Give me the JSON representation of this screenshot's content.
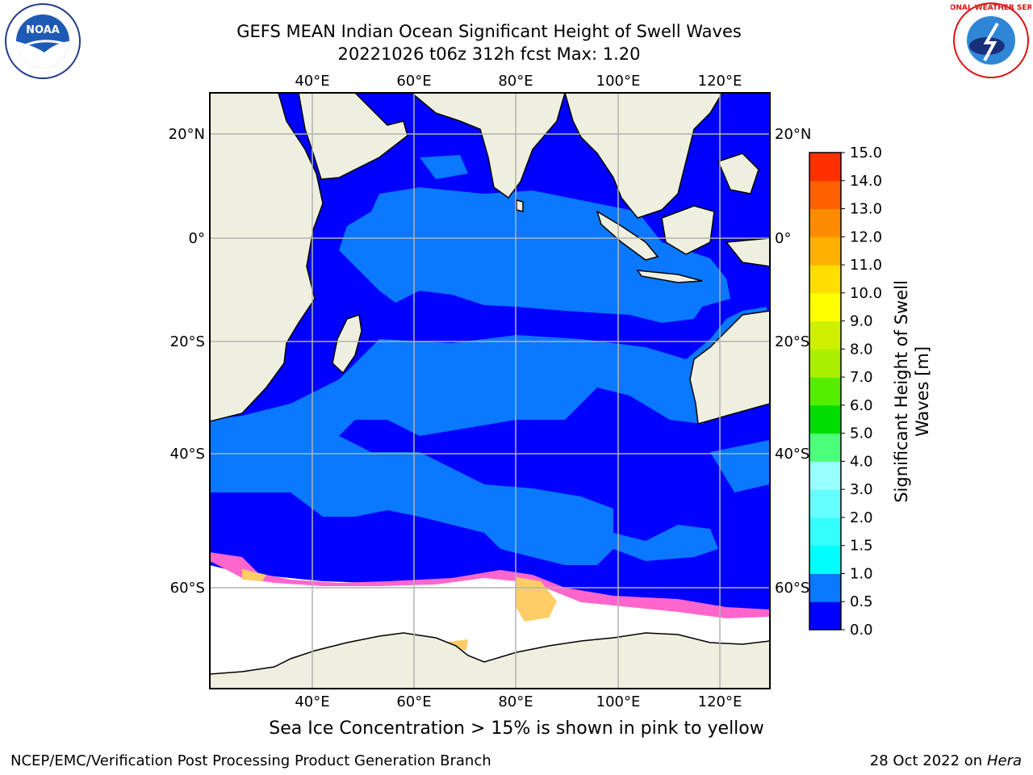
{
  "title": {
    "line1": "GEFS MEAN Indian Ocean Significant Height of Swell Waves",
    "line2": "20221026 t06z 312h fcst   Max: 1.20"
  },
  "map": {
    "lon_ticks": [
      "40°E",
      "60°E",
      "80°E",
      "100°E",
      "120°E"
    ],
    "lat_ticks": [
      "20°N",
      "0°",
      "20°S",
      "40°S",
      "60°S"
    ],
    "lon_range": [
      20,
      130
    ],
    "lat_range": [
      -74,
      28
    ]
  },
  "colorbar": {
    "label_line1": "Significant Height of Swell",
    "label_line2": "Waves [m]",
    "ticks": [
      "0.0",
      "0.5",
      "1.0",
      "1.5",
      "2.0",
      "3.0",
      "4.0",
      "5.0",
      "6.0",
      "7.0",
      "8.0",
      "9.0",
      "10.0",
      "11.0",
      "12.0",
      "13.0",
      "14.0",
      "15.0"
    ],
    "colors": [
      "#0000ff",
      "#0a78ff",
      "#00ffff",
      "#33ffff",
      "#66ffff",
      "#99ffff",
      "#4cff7a",
      "#00dd00",
      "#55ee00",
      "#aaf000",
      "#ccf000",
      "#ffff00",
      "#ffdd00",
      "#ffb000",
      "#ff8c00",
      "#ff6000",
      "#ff3000",
      "#ff0000"
    ]
  },
  "caption": "Sea Ice Concentration > 15% is shown in pink to yellow",
  "footer": {
    "left": "NCEP/EMC/Verification Post Processing Product Generation Branch",
    "right_prefix": "28 Oct 2022 on ",
    "right_host": "Hera"
  },
  "logos": {
    "left_text": "NOAA",
    "right_text": "NATIONAL WEATHER SERVICE"
  }
}
